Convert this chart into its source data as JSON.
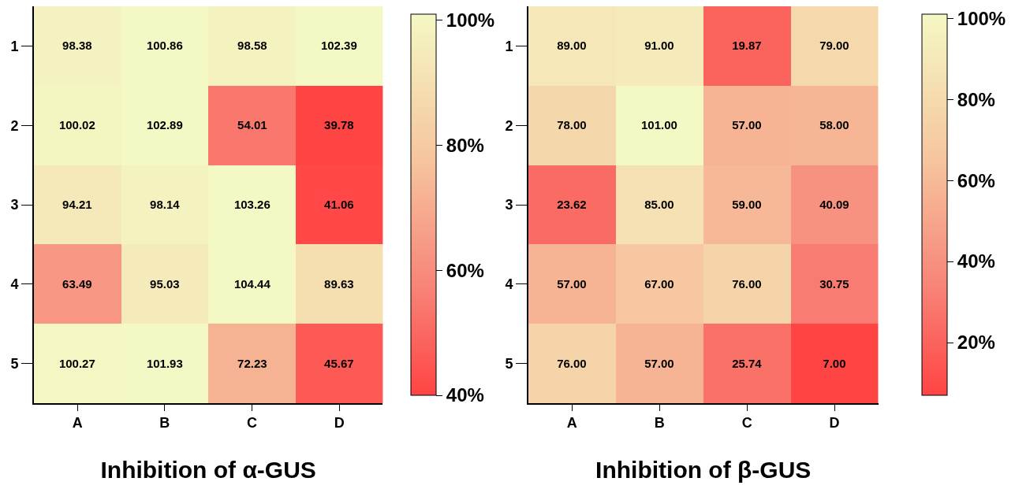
{
  "chart_data": [
    {
      "type": "heatmap",
      "xlabel": "Inhibition of α-GUS",
      "categories": [
        "A",
        "B",
        "C",
        "D"
      ],
      "y_categories": [
        "1",
        "2",
        "3",
        "4",
        "5"
      ],
      "cells": [
        [
          98.38,
          100.86,
          98.58,
          102.39
        ],
        [
          100.02,
          102.89,
          54.01,
          39.78
        ],
        [
          94.21,
          98.14,
          103.26,
          41.06
        ],
        [
          63.49,
          95.03,
          104.44,
          89.63
        ],
        [
          100.27,
          101.93,
          72.23,
          45.67
        ]
      ],
      "cell_labels": [
        [
          "98.38",
          "100.86",
          "98.58",
          "102.39"
        ],
        [
          "100.02",
          "102.89",
          "54.01",
          "39.78"
        ],
        [
          "94.21",
          "98.14",
          "103.26",
          "41.06"
        ],
        [
          "63.49",
          "95.03",
          "104.44",
          "89.63"
        ],
        [
          "100.27",
          "101.93",
          "72.23",
          "45.67"
        ]
      ],
      "clim": [
        40,
        101
      ],
      "cticks": [
        {
          "value": 40,
          "label": "40%"
        },
        {
          "value": 60,
          "label": "60%"
        },
        {
          "value": 80,
          "label": "80%"
        },
        {
          "value": 100,
          "label": "100%"
        }
      ]
    },
    {
      "type": "heatmap",
      "xlabel": "Inhibition of β-GUS",
      "categories": [
        "A",
        "B",
        "C",
        "D"
      ],
      "y_categories": [
        "1",
        "2",
        "3",
        "4",
        "5"
      ],
      "cells": [
        [
          89,
          91,
          19.87,
          79
        ],
        [
          78,
          101,
          57,
          58
        ],
        [
          23.62,
          85,
          59,
          40.09
        ],
        [
          57,
          67,
          76,
          30.75
        ],
        [
          76,
          57,
          25.74,
          7
        ]
      ],
      "cell_labels": [
        [
          "89.00",
          "91.00",
          "19.87",
          "79.00"
        ],
        [
          "78.00",
          "101.00",
          "57.00",
          "58.00"
        ],
        [
          "23.62",
          "85.00",
          "59.00",
          "40.09"
        ],
        [
          "57.00",
          "67.00",
          "76.00",
          "30.75"
        ],
        [
          "76.00",
          "57.00",
          "25.74",
          "7.00"
        ]
      ],
      "clim": [
        7,
        101
      ],
      "cticks": [
        {
          "value": 20,
          "label": "20%"
        },
        {
          "value": 40,
          "label": "40%"
        },
        {
          "value": 60,
          "label": "60%"
        },
        {
          "value": 80,
          "label": "80%"
        },
        {
          "value": 100,
          "label": "100%"
        }
      ]
    }
  ]
}
